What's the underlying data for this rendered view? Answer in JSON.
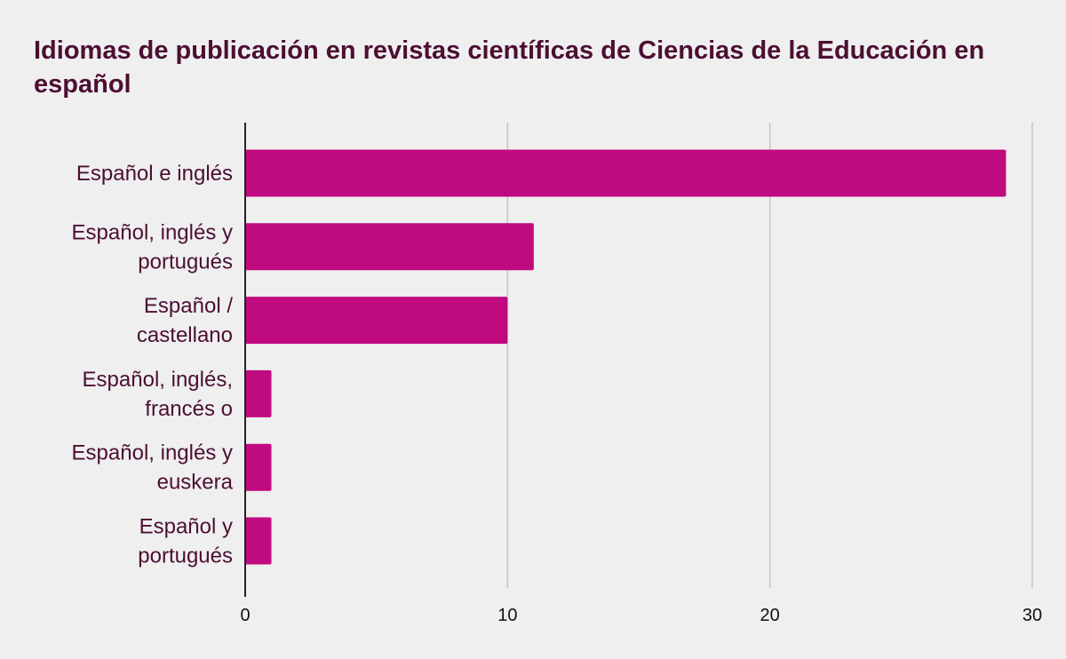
{
  "chart_data": {
    "type": "bar",
    "orientation": "horizontal",
    "title": "Idiomas de publicación en revistas científicas de Ciencias de la Educación en español",
    "categories": [
      [
        "Español e inglés"
      ],
      [
        "Español, inglés y",
        "portugués"
      ],
      [
        "Español /",
        "castellano"
      ],
      [
        "Español, inglés,",
        "francés o"
      ],
      [
        "Español, inglés y",
        "euskera"
      ],
      [
        "Español y",
        "portugués"
      ]
    ],
    "values": [
      29,
      11,
      10,
      1,
      1,
      1
    ],
    "xlim": [
      0,
      30
    ],
    "xticks": [
      0,
      10,
      20,
      30
    ],
    "xlabel": "",
    "ylabel": "",
    "grid": "vertical",
    "legend": "none",
    "colors": {
      "bar": "#c00a7f",
      "title": "#4c0f32",
      "background": "#efefef",
      "grid": "#c4c4c4"
    }
  }
}
